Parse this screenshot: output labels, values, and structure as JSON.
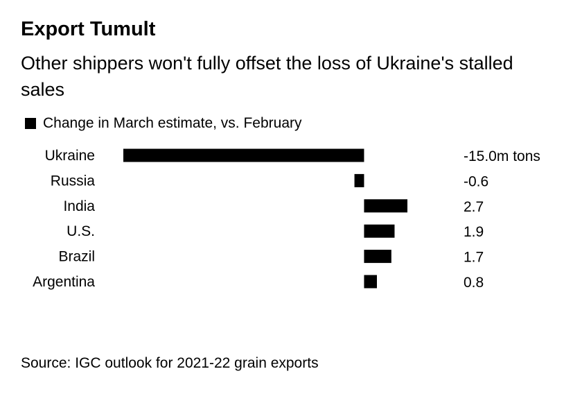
{
  "title": "Export Tumult",
  "subtitle": "Other shippers won't fully offset the loss of Ukraine's stalled sales",
  "legend": {
    "label": "Change in March estimate, vs. February",
    "color": "#000000"
  },
  "source": "Source: IGC outlook for 2021-22 grain exports",
  "chart_data": {
    "type": "bar",
    "orientation": "horizontal",
    "categories": [
      "Ukraine",
      "Russia",
      "India",
      "U.S.",
      "Brazil",
      "Argentina"
    ],
    "values": [
      -15.0,
      -0.6,
      2.7,
      1.9,
      1.7,
      0.8
    ],
    "value_labels": [
      "-15.0m tons",
      "-0.6",
      "2.7",
      "1.9",
      "1.7",
      "0.8"
    ],
    "series": [
      {
        "name": "Change in March estimate, vs. February",
        "values": [
          -15.0,
          -0.6,
          2.7,
          1.9,
          1.7,
          0.8
        ]
      }
    ],
    "xlim": [
      -15.0,
      2.7
    ],
    "grid": false,
    "legend_position": "top-left",
    "bar_color": "#000000"
  }
}
